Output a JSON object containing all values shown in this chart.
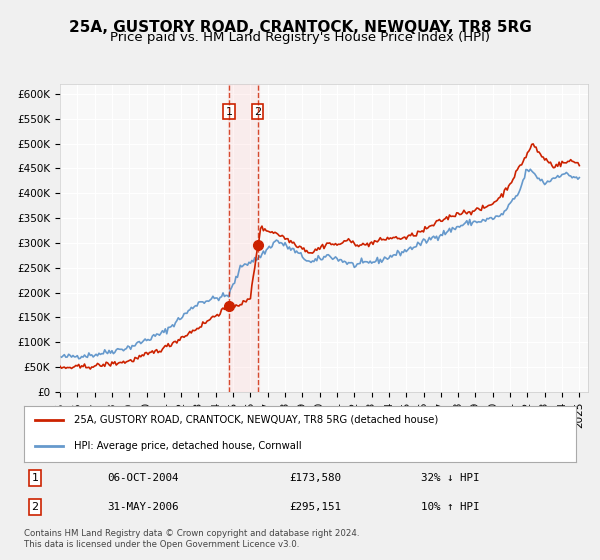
{
  "title": "25A, GUSTORY ROAD, CRANTOCK, NEWQUAY, TR8 5RG",
  "subtitle": "Price paid vs. HM Land Registry's House Price Index (HPI)",
  "ylim": [
    0,
    620000
  ],
  "yticks": [
    0,
    50000,
    100000,
    150000,
    200000,
    250000,
    300000,
    350000,
    400000,
    450000,
    500000,
    550000,
    600000
  ],
  "ytick_labels": [
    "£0",
    "£50K",
    "£100K",
    "£150K",
    "£200K",
    "£250K",
    "£300K",
    "£350K",
    "£400K",
    "£450K",
    "£500K",
    "£550K",
    "£600K"
  ],
  "xlim_start": 1995.0,
  "xlim_end": 2025.5,
  "xtick_years": [
    1995,
    1996,
    1997,
    1998,
    1999,
    2000,
    2001,
    2002,
    2003,
    2004,
    2005,
    2006,
    2007,
    2008,
    2009,
    2010,
    2011,
    2012,
    2013,
    2014,
    2015,
    2016,
    2017,
    2018,
    2019,
    2020,
    2021,
    2022,
    2023,
    2024,
    2025
  ],
  "hpi_color": "#6699cc",
  "property_color": "#cc2200",
  "transaction1_date": 2004.77,
  "transaction1_price": 173580,
  "transaction2_date": 2006.42,
  "transaction2_price": 295151,
  "label1_date": "06-OCT-2004",
  "label1_price": "£173,580",
  "label1_hpi": "32% ↓ HPI",
  "label2_date": "31-MAY-2006",
  "label2_price": "£295,151",
  "label2_hpi": "10% ↑ HPI",
  "legend_property": "25A, GUSTORY ROAD, CRANTOCK, NEWQUAY, TR8 5RG (detached house)",
  "legend_hpi": "HPI: Average price, detached house, Cornwall",
  "footnote": "Contains HM Land Registry data © Crown copyright and database right 2024.\nThis data is licensed under the Open Government Licence v3.0.",
  "background_color": "#f8f8f8",
  "grid_color": "#ffffff",
  "title_fontsize": 11,
  "subtitle_fontsize": 9.5
}
